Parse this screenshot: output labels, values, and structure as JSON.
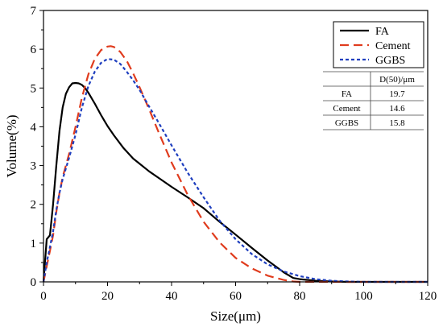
{
  "chart_data": {
    "type": "line",
    "xlabel": "Size(μm)",
    "ylabel": "Volume(%)",
    "xlim": [
      0,
      120
    ],
    "ylim": [
      0,
      7
    ],
    "xticks": [
      0,
      20,
      40,
      60,
      80,
      100,
      120
    ],
    "yticks": [
      0,
      1,
      2,
      3,
      4,
      5,
      6,
      7
    ],
    "grid": false,
    "legend_position": "top-right",
    "series": [
      {
        "name": "FA",
        "color": "#000000",
        "style": "solid",
        "x": [
          0,
          1,
          2,
          3,
          4,
          5,
          6,
          7,
          8,
          9,
          10,
          11,
          12,
          13,
          14,
          16,
          18,
          20,
          22,
          25,
          28,
          30,
          33,
          36,
          40,
          45,
          50,
          55,
          60,
          65,
          70,
          75,
          78,
          80,
          85,
          90,
          95,
          100,
          110,
          120
        ],
        "y": [
          0,
          1.1,
          1.2,
          2.0,
          3.0,
          3.9,
          4.5,
          4.85,
          5.02,
          5.12,
          5.13,
          5.12,
          5.08,
          5.0,
          4.88,
          4.6,
          4.3,
          4.02,
          3.78,
          3.45,
          3.18,
          3.05,
          2.85,
          2.68,
          2.45,
          2.18,
          1.9,
          1.55,
          1.22,
          0.88,
          0.55,
          0.25,
          0.1,
          0.07,
          0.03,
          0.01,
          0,
          0,
          0,
          0
        ]
      },
      {
        "name": "Cement",
        "color": "#e03c1e",
        "style": "dashed",
        "x": [
          0,
          1,
          2,
          3,
          4,
          5,
          6,
          8,
          10,
          12,
          14,
          16,
          18,
          20,
          21,
          22,
          24,
          26,
          28,
          30,
          33,
          36,
          40,
          45,
          50,
          55,
          60,
          65,
          70,
          75,
          78,
          80,
          85,
          90,
          100,
          120
        ],
        "y": [
          0,
          0.4,
          0.8,
          1.2,
          1.8,
          2.3,
          2.7,
          3.3,
          4.0,
          4.75,
          5.35,
          5.75,
          5.98,
          6.07,
          6.08,
          6.06,
          5.93,
          5.7,
          5.38,
          5.02,
          4.45,
          3.85,
          3.08,
          2.25,
          1.55,
          1.02,
          0.62,
          0.35,
          0.16,
          0.05,
          0.01,
          0,
          0,
          0,
          0,
          0
        ]
      },
      {
        "name": "GGBS",
        "color": "#1f3fbf",
        "style": "dotted",
        "x": [
          0,
          1,
          2,
          3,
          4,
          5,
          6,
          8,
          10,
          12,
          14,
          16,
          18,
          20,
          22,
          24,
          26,
          28,
          30,
          33,
          36,
          40,
          45,
          50,
          55,
          60,
          65,
          70,
          75,
          80,
          85,
          90,
          95,
          100,
          110,
          120
        ],
        "y": [
          0,
          0.5,
          0.9,
          1.3,
          1.85,
          2.3,
          2.65,
          3.2,
          3.8,
          4.5,
          5.05,
          5.42,
          5.65,
          5.75,
          5.73,
          5.62,
          5.42,
          5.2,
          4.95,
          4.52,
          4.1,
          3.52,
          2.82,
          2.18,
          1.58,
          1.1,
          0.72,
          0.45,
          0.27,
          0.15,
          0.07,
          0.03,
          0.01,
          0,
          0,
          0
        ]
      }
    ],
    "table": {
      "header": [
        "",
        "D(50)/μm"
      ],
      "rows": [
        [
          "FA",
          "19.7"
        ],
        [
          "Cement",
          "14.6"
        ],
        [
          "GGBS",
          "15.8"
        ]
      ]
    }
  }
}
